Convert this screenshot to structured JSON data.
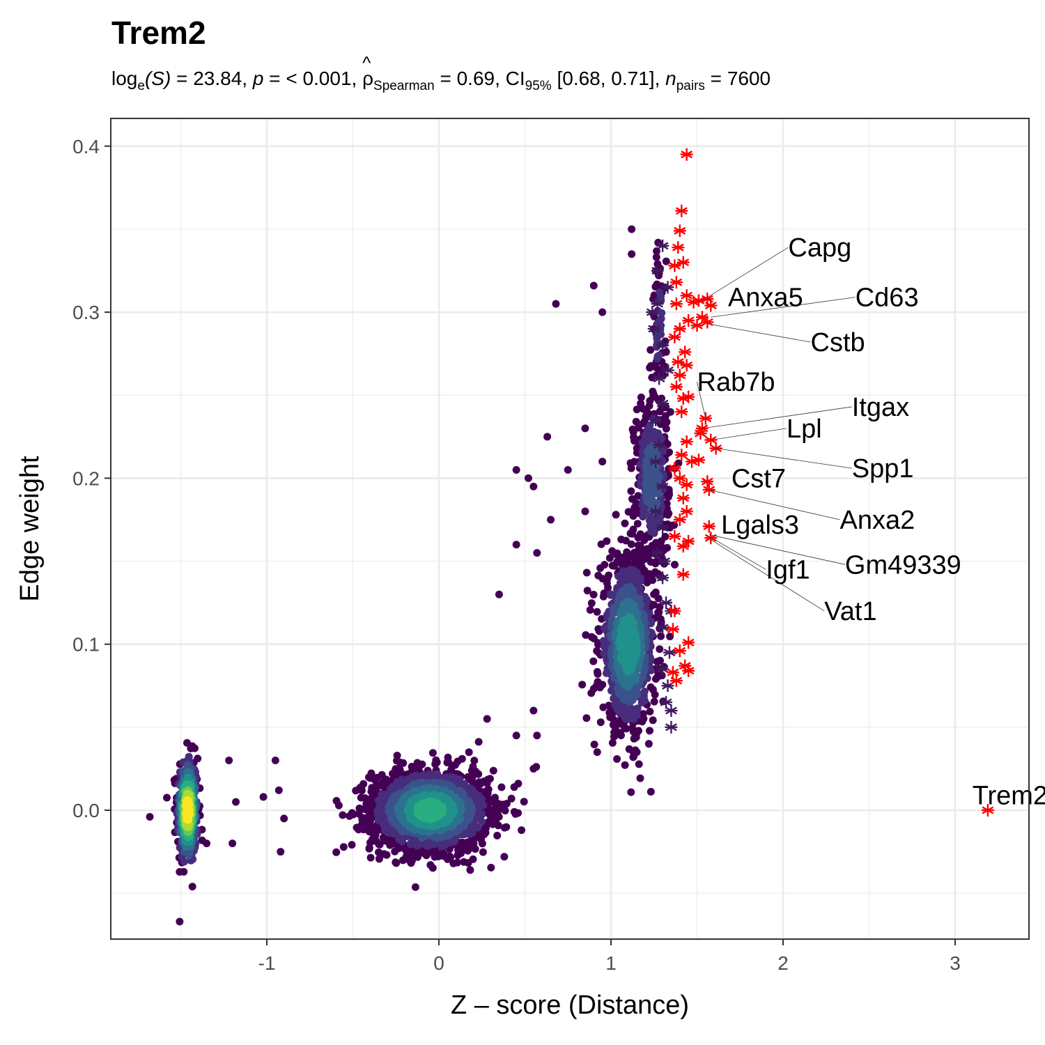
{
  "chart_data": {
    "type": "scatter",
    "title": "Trem2",
    "subtitle": {
      "log_prefix": "log",
      "log_sub": "e",
      "log_arg": "(S)",
      "log_value": " = 23.84, ",
      "p_label": "p",
      "p_value": " = < 0.001, ",
      "rho_symbol": "ρ",
      "rho_sub": "Spearman",
      "rho_value": " = 0.69, ",
      "ci_label": "CI",
      "ci_sub": "95%",
      "ci_value": " [0.68, 0.71], ",
      "n_label": "n",
      "n_sub": "pairs",
      "n_value": " = 7600"
    },
    "xlabel": "Z – score (Distance)",
    "ylabel": "Edge weight",
    "xlim": [
      -1.9,
      3.45
    ],
    "ylim": [
      -0.078,
      0.415
    ],
    "x_ticks": [
      -1,
      0,
      1,
      2,
      3
    ],
    "x_tick_labels": [
      "-1",
      "0",
      "1",
      "2",
      "3"
    ],
    "y_ticks": [
      0.0,
      0.1,
      0.2,
      0.3,
      0.4
    ],
    "y_tick_labels": [
      "0.0",
      "0.1",
      "0.2",
      "0.3",
      "0.4"
    ],
    "grid": true,
    "density_colors": [
      "#440154",
      "#472d7b",
      "#3b528b",
      "#2c728e",
      "#21918c",
      "#28ae80",
      "#5ec962",
      "#addc30",
      "#fde725"
    ],
    "highlight_color": "#ff0000",
    "neighbor_marker_color": "#3f1a5e",
    "clusters": [
      {
        "cx": -1.46,
        "cy": 0.0,
        "sx": 0.03,
        "sy": 0.016,
        "n": 420
      },
      {
        "cx": -0.05,
        "cy": 0.0,
        "sx": 0.17,
        "sy": 0.012,
        "n": 1900
      },
      {
        "cx": 1.1,
        "cy": 0.1,
        "sx": 0.08,
        "sy": 0.026,
        "n": 950
      },
      {
        "cx": 1.24,
        "cy": 0.2,
        "sx": 0.05,
        "sy": 0.025,
        "n": 420
      },
      {
        "cx": 1.28,
        "cy": 0.29,
        "sx": 0.02,
        "sy": 0.025,
        "n": 60
      }
    ],
    "outlier_points": [
      [
        -1.68,
        -0.004
      ],
      [
        -1.35,
        -0.02
      ],
      [
        -1.22,
        0.03
      ],
      [
        -1.2,
        -0.02
      ],
      [
        -1.18,
        0.005
      ],
      [
        -0.95,
        0.03
      ],
      [
        -0.93,
        0.012
      ],
      [
        -0.9,
        -0.005
      ],
      [
        -0.92,
        -0.025
      ],
      [
        -1.02,
        0.008
      ],
      [
        0.38,
        -0.028
      ],
      [
        0.48,
        -0.012
      ],
      [
        0.55,
        0.025
      ],
      [
        0.45,
        0.045
      ],
      [
        0.55,
        0.195
      ],
      [
        0.68,
        0.305
      ],
      [
        0.9,
        0.316
      ],
      [
        0.95,
        0.3
      ],
      [
        1.12,
        0.335
      ],
      [
        1.12,
        0.35
      ],
      [
        0.85,
        0.23
      ],
      [
        0.75,
        0.205
      ],
      [
        0.45,
        0.205
      ],
      [
        0.52,
        0.2
      ],
      [
        0.63,
        0.225
      ],
      [
        0.57,
        0.155
      ],
      [
        0.45,
        0.16
      ],
      [
        0.35,
        0.13
      ],
      [
        0.55,
        0.06
      ],
      [
        0.57,
        0.045
      ],
      [
        0.92,
        0.035
      ],
      [
        1.15,
        0.035
      ],
      [
        1.22,
        0.04
      ],
      [
        0.28,
        0.055
      ],
      [
        0.65,
        0.175
      ],
      [
        0.85,
        0.18
      ],
      [
        0.95,
        0.21
      ]
    ],
    "neighbor_markers": [
      [
        1.3,
        0.34
      ],
      [
        1.27,
        0.325
      ],
      [
        1.33,
        0.315
      ],
      [
        1.27,
        0.305
      ],
      [
        1.25,
        0.29
      ],
      [
        1.3,
        0.28
      ],
      [
        1.28,
        0.26
      ],
      [
        1.3,
        0.245
      ],
      [
        1.26,
        0.235
      ],
      [
        1.28,
        0.22
      ],
      [
        1.26,
        0.21
      ],
      [
        1.3,
        0.195
      ],
      [
        1.26,
        0.18
      ],
      [
        1.3,
        0.17
      ],
      [
        1.27,
        0.155
      ],
      [
        1.3,
        0.14
      ],
      [
        1.32,
        0.125
      ],
      [
        1.35,
        0.12
      ],
      [
        1.3,
        0.11
      ],
      [
        1.34,
        0.095
      ],
      [
        1.3,
        0.085
      ],
      [
        1.33,
        0.075
      ],
      [
        1.32,
        0.065
      ],
      [
        1.35,
        0.06
      ],
      [
        1.35,
        0.05
      ],
      [
        1.33,
        0.265
      ],
      [
        1.24,
        0.3
      ],
      [
        1.31,
        0.15
      ]
    ],
    "highlighted_points": [
      [
        1.44,
        0.395
      ],
      [
        1.41,
        0.361
      ],
      [
        1.4,
        0.349
      ],
      [
        1.39,
        0.339
      ],
      [
        1.42,
        0.33
      ],
      [
        1.37,
        0.328
      ],
      [
        1.38,
        0.318
      ],
      [
        1.44,
        0.31
      ],
      [
        1.38,
        0.305
      ],
      [
        1.48,
        0.306
      ],
      [
        1.51,
        0.307
      ],
      [
        1.56,
        0.308
      ],
      [
        1.58,
        0.304
      ],
      [
        1.53,
        0.297
      ],
      [
        1.56,
        0.294
      ],
      [
        1.5,
        0.292
      ],
      [
        1.45,
        0.295
      ],
      [
        1.4,
        0.29
      ],
      [
        1.37,
        0.285
      ],
      [
        1.43,
        0.276
      ],
      [
        1.39,
        0.27
      ],
      [
        1.44,
        0.268
      ],
      [
        1.4,
        0.262
      ],
      [
        1.38,
        0.255
      ],
      [
        1.45,
        0.249
      ],
      [
        1.42,
        0.248
      ],
      [
        1.41,
        0.24
      ],
      [
        1.55,
        0.236
      ],
      [
        1.53,
        0.23
      ],
      [
        1.52,
        0.227
      ],
      [
        1.58,
        0.223
      ],
      [
        1.61,
        0.218
      ],
      [
        1.44,
        0.222
      ],
      [
        1.41,
        0.214
      ],
      [
        1.47,
        0.21
      ],
      [
        1.51,
        0.211
      ],
      [
        1.37,
        0.206
      ],
      [
        1.4,
        0.2
      ],
      [
        1.44,
        0.196
      ],
      [
        1.56,
        0.198
      ],
      [
        1.57,
        0.193
      ],
      [
        1.42,
        0.188
      ],
      [
        1.44,
        0.18
      ],
      [
        1.4,
        0.175
      ],
      [
        1.57,
        0.171
      ],
      [
        1.58,
        0.164
      ],
      [
        1.37,
        0.165
      ],
      [
        1.42,
        0.159
      ],
      [
        1.45,
        0.162
      ],
      [
        1.42,
        0.142
      ],
      [
        1.37,
        0.12
      ],
      [
        1.36,
        0.109
      ],
      [
        1.45,
        0.101
      ],
      [
        1.4,
        0.096
      ],
      [
        1.43,
        0.087
      ],
      [
        1.36,
        0.083
      ],
      [
        1.45,
        0.084
      ],
      [
        1.38,
        0.078
      ],
      [
        3.19,
        0.0
      ]
    ],
    "gene_labels": [
      {
        "name": "Capg",
        "x": 1.53,
        "y": 0.307,
        "lx": 2.03,
        "ly": 0.339,
        "line": true
      },
      {
        "name": "Anxa5",
        "x": 1.55,
        "y": 0.305,
        "lx": 1.68,
        "ly": 0.309,
        "line": false
      },
      {
        "name": "Cd63",
        "x": 1.58,
        "y": 0.297,
        "lx": 2.42,
        "ly": 0.309,
        "line": true
      },
      {
        "name": "Cstb",
        "x": 1.56,
        "y": 0.293,
        "lx": 2.16,
        "ly": 0.282,
        "line": true
      },
      {
        "name": "Rab7b",
        "x": 1.55,
        "y": 0.236,
        "lx": 1.5,
        "ly": 0.258,
        "line": true
      },
      {
        "name": "Itgax",
        "x": 1.53,
        "y": 0.23,
        "lx": 2.4,
        "ly": 0.243,
        "line": true
      },
      {
        "name": "Lpl",
        "x": 1.58,
        "y": 0.223,
        "lx": 2.02,
        "ly": 0.23,
        "line": true
      },
      {
        "name": "Spp1",
        "x": 1.61,
        "y": 0.218,
        "lx": 2.4,
        "ly": 0.206,
        "line": true
      },
      {
        "name": "Cst7",
        "x": 1.56,
        "y": 0.197,
        "lx": 1.7,
        "ly": 0.2,
        "line": false
      },
      {
        "name": "Anxa2",
        "x": 1.57,
        "y": 0.193,
        "lx": 2.33,
        "ly": 0.175,
        "line": true
      },
      {
        "name": "Lgals3",
        "x": 1.57,
        "y": 0.17,
        "lx": 1.64,
        "ly": 0.172,
        "line": false
      },
      {
        "name": "Gm49339",
        "x": 1.57,
        "y": 0.166,
        "lx": 2.36,
        "ly": 0.148,
        "line": true
      },
      {
        "name": "Igf1",
        "x": 1.57,
        "y": 0.165,
        "lx": 1.9,
        "ly": 0.145,
        "line": true
      },
      {
        "name": "Vat1",
        "x": 1.58,
        "y": 0.163,
        "lx": 2.24,
        "ly": 0.12,
        "line": true
      },
      {
        "name": "Trem2",
        "x": 3.19,
        "y": 0.0,
        "lx": 3.1,
        "ly": 0.009,
        "line": false
      }
    ]
  }
}
